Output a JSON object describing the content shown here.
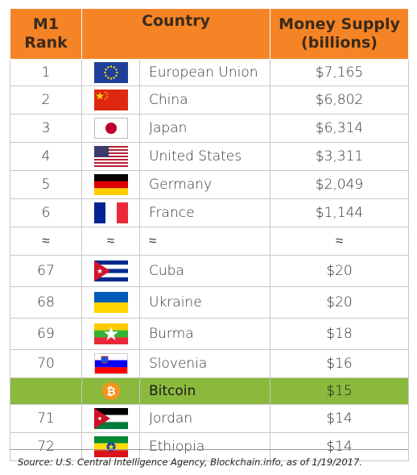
{
  "header": {
    "rank_line1": "M1",
    "rank_line2": "Rank",
    "country": "Country",
    "money_line1": "Money Supply",
    "money_line2": "(billions)"
  },
  "rows": [
    {
      "rank": "1",
      "flag": "eu-flag-icon",
      "country": "European Union",
      "money": "$7,165"
    },
    {
      "rank": "2",
      "flag": "china-flag-icon",
      "country": "China",
      "money": "$6,802"
    },
    {
      "rank": "3",
      "flag": "japan-flag-icon",
      "country": "Japan",
      "money": "$6,314"
    },
    {
      "rank": "4",
      "flag": "usa-flag-icon",
      "country": "United States",
      "money": "$3,311"
    },
    {
      "rank": "5",
      "flag": "germany-flag-icon",
      "country": "Germany",
      "money": "$2,049"
    },
    {
      "rank": "6",
      "flag": "france-flag-icon",
      "country": "France",
      "money": "$1,144"
    },
    {
      "rank": "≈",
      "flag": "≈",
      "country": "≈",
      "money": "≈"
    },
    {
      "rank": "67",
      "flag": "cuba-flag-icon",
      "country": "Cuba",
      "money": "$20"
    },
    {
      "rank": "68",
      "flag": "ukraine-flag-icon",
      "country": "Ukraine",
      "money": "$20"
    },
    {
      "rank": "69",
      "flag": "burma-flag-icon",
      "country": "Burma",
      "money": "$18"
    },
    {
      "rank": "70",
      "flag": "slovenia-flag-icon",
      "country": "Slovenia",
      "money": "$16"
    },
    {
      "rank": "",
      "flag": "bitcoin-icon",
      "country": "Bitcoin",
      "money": "$15"
    },
    {
      "rank": "71",
      "flag": "jordan-flag-icon",
      "country": "Jordan",
      "money": "$14"
    },
    {
      "rank": "72",
      "flag": "ethiopia-flag-icon",
      "country": "Ethiopia",
      "money": "$14"
    }
  ],
  "colors": {
    "header_bg": "#f58426",
    "highlight_bg": "#8bb93e",
    "bitcoin_orange": "#f7931a"
  },
  "caption": "Source:  U.S. Central Intelligence Agency, Blockchain.info, as of 1/19/2017."
}
